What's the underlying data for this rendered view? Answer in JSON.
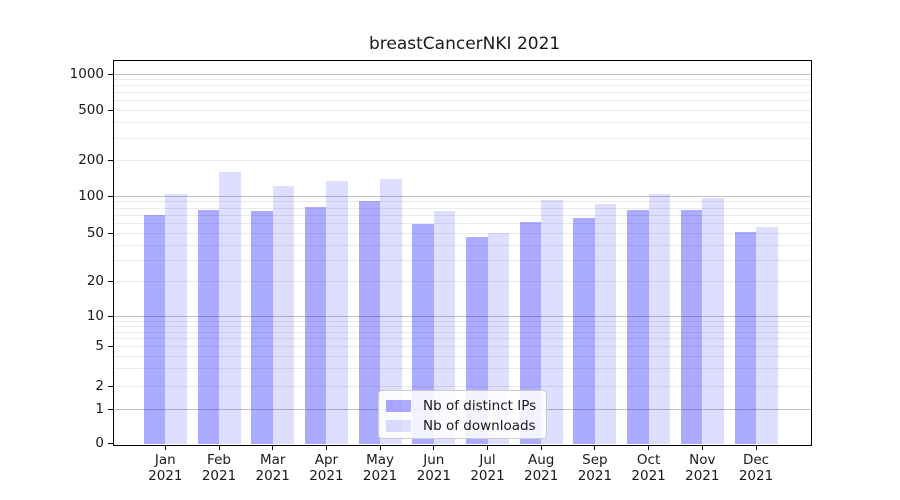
{
  "chart_data": {
    "type": "bar",
    "title": "breastCancerNKI 2021",
    "months": [
      "Jan",
      "Feb",
      "Mar",
      "Apr",
      "May",
      "Jun",
      "Jul",
      "Aug",
      "Sep",
      "Oct",
      "Nov",
      "Dec"
    ],
    "year": "2021",
    "series": [
      {
        "name": "Nb of distinct IPs",
        "color": "rgba(0,0,255,0.33)",
        "values": [
          70,
          78,
          76,
          82,
          92,
          60,
          47,
          62,
          66,
          77,
          78,
          51
        ]
      },
      {
        "name": "Nb of downloads",
        "color": "rgba(0,0,255,0.13)",
        "values": [
          105,
          160,
          122,
          134,
          139,
          76,
          50,
          93,
          87,
          104,
          96,
          56
        ]
      }
    ],
    "yscale": "symlog",
    "y_ticks": [
      0,
      1,
      2,
      5,
      10,
      20,
      50,
      100,
      200,
      500,
      1000
    ],
    "y_minor_gridlines": [
      2,
      3,
      4,
      5,
      6,
      7,
      8,
      9,
      20,
      30,
      40,
      50,
      60,
      70,
      80,
      90,
      200,
      300,
      400,
      500,
      600,
      700,
      800,
      900
    ],
    "y_major_gridlines": [
      1,
      10,
      100,
      1000
    ],
    "ylim": [
      0,
      1000
    ],
    "xlabel": "",
    "ylabel": "",
    "grid": "y",
    "legend_position": "lower center"
  },
  "colors": {
    "major_grid": "#c2c2c2",
    "minor_grid": "#ebebeb",
    "axis": "#000000",
    "background": "#ffffff"
  }
}
